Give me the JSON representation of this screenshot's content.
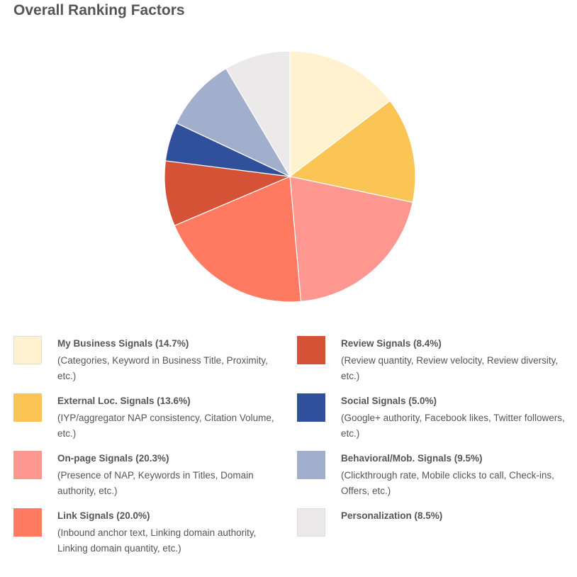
{
  "title": "Overall Ranking Factors",
  "chart_data": {
    "type": "pie",
    "slices": [
      {
        "name": "My Business Signals",
        "value": 14.7,
        "label": "My Business Signals (14.7%)",
        "desc": "(Categories, Keyword in Business Title, Proximity, etc.)",
        "color": "#fff2ce"
      },
      {
        "name": "External Loc. Signals",
        "value": 13.6,
        "label": "External Loc. Signals (13.6%)",
        "desc": "(IYP/aggregator NAP consistency, Citation Volume, etc.)",
        "color": "#fbc556"
      },
      {
        "name": "On-page Signals",
        "value": 20.3,
        "label": "On-page Signals (20.3%)",
        "desc": "(Presence of NAP, Keywords in Titles, Domain authority, etc.)",
        "color": "#ff9791"
      },
      {
        "name": "Link Signals",
        "value": 20.0,
        "label": "Link Signals (20.0%)",
        "desc": "(Inbound anchor text, Linking domain authority, Linking domain quantity, etc.)",
        "color": "#ff7a61"
      },
      {
        "name": "Review Signals",
        "value": 8.4,
        "label": "Review Signals (8.4%)",
        "desc": "(Review quantity, Review velocity, Review diversity, etc.)",
        "color": "#d55237"
      },
      {
        "name": "Social Signals",
        "value": 5.0,
        "label": "Social Signals (5.0%)",
        "desc": "(Google+ authority, Facebook likes, Twitter followers, etc.)",
        "color": "#30509c"
      },
      {
        "name": "Behavioral/Mob. Signals",
        "value": 9.5,
        "label": "Behavioral/Mob. Signals (9.5%)",
        "desc": "(Clickthrough rate, Mobile clicks to call, Check-ins, Offers, etc.)",
        "color": "#a1aecc"
      },
      {
        "name": "Personalization",
        "value": 8.5,
        "label": "Personalization (8.5%)",
        "desc": "",
        "color": "#ebe9ea"
      }
    ],
    "start": "12 o'clock",
    "direction": "clockwise",
    "legend_placement": "bottom, two columns"
  }
}
